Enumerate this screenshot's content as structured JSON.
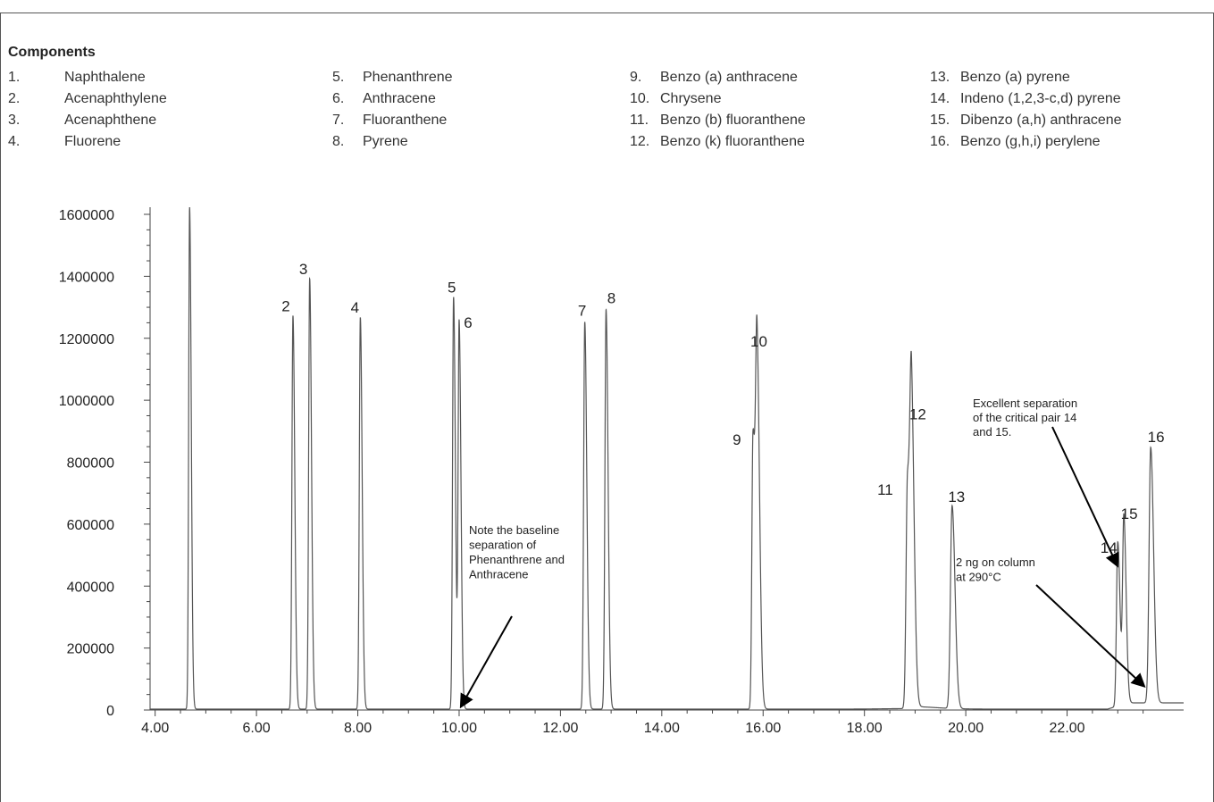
{
  "legend": {
    "title": "Components",
    "columns": [
      [
        {
          "num": "1.",
          "name": "Naphthalene"
        },
        {
          "num": "2.",
          "name": "Acenaphthylene"
        },
        {
          "num": "3.",
          "name": "Acenaphthene"
        },
        {
          "num": "4.",
          "name": "Fluorene"
        }
      ],
      [
        {
          "num": "5.",
          "name": "Phenanthrene"
        },
        {
          "num": "6.",
          "name": "Anthracene"
        },
        {
          "num": "7.",
          "name": "Fluoranthene"
        },
        {
          "num": "8.",
          "name": "Pyrene"
        }
      ],
      [
        {
          "num": "9.",
          "name": "Benzo (a) anthracene"
        },
        {
          "num": "10.",
          "name": "Chrysene"
        },
        {
          "num": "11.",
          "name": "Benzo (b) fluoranthene"
        },
        {
          "num": "12.",
          "name": "Benzo (k) fluoranthene"
        }
      ],
      [
        {
          "num": "13.",
          "name": "Benzo (a) pyrene"
        },
        {
          "num": "14.",
          "name": "Indeno (1,2,3-c,d) pyrene"
        },
        {
          "num": "15.",
          "name": "Dibenzo (a,h) anthracene"
        },
        {
          "num": "16.",
          "name": "Benzo (g,h,i) perylene"
        }
      ]
    ]
  },
  "chart_data": {
    "type": "line",
    "title": "",
    "xlabel": "",
    "ylabel": "",
    "xlim": [
      3.9,
      24.3
    ],
    "ylim": [
      0,
      1600000
    ],
    "grid": false,
    "x_ticks": [
      4,
      6,
      8,
      10,
      12,
      14,
      16,
      18,
      20,
      22
    ],
    "x_tick_labels": [
      "4.00",
      "6.00",
      "8.00",
      "10.00",
      "12.00",
      "14.00",
      "16.00",
      "18.00",
      "20.00",
      "22.00"
    ],
    "y_ticks": [
      0,
      200000,
      400000,
      600000,
      800000,
      1000000,
      1200000,
      1400000,
      1600000
    ],
    "y_tick_labels": [
      "0",
      "200000",
      "400000",
      "600000",
      "800000",
      "1000000",
      "1200000",
      "1400000",
      "1600000"
    ],
    "line_color": "#555555",
    "peaks": [
      {
        "label": "",
        "rt": 4.68,
        "height": 1620000,
        "width": 0.018
      },
      {
        "label": "2",
        "rt": 6.72,
        "height": 1270000,
        "width": 0.02
      },
      {
        "label": "3",
        "rt": 7.05,
        "height": 1390000,
        "width": 0.02
      },
      {
        "label": "4",
        "rt": 8.05,
        "height": 1265000,
        "width": 0.02
      },
      {
        "label": "5",
        "rt": 9.89,
        "height": 1330000,
        "width": 0.02
      },
      {
        "label": "6",
        "rt": 10.0,
        "height": 1245000,
        "width": 0.02
      },
      {
        "label": "7",
        "rt": 12.48,
        "height": 1250000,
        "width": 0.022
      },
      {
        "label": "8",
        "rt": 12.9,
        "height": 1290000,
        "width": 0.022
      },
      {
        "label": "9",
        "rt": 15.8,
        "height": 880000,
        "width": 0.022
      },
      {
        "label": "10",
        "rt": 15.88,
        "height": 1145000,
        "width": 0.028
      },
      {
        "label": "11",
        "rt": 18.85,
        "height": 735000,
        "width": 0.028
      },
      {
        "label": "12",
        "rt": 18.93,
        "height": 915000,
        "width": 0.03
      },
      {
        "label": "13",
        "rt": 19.73,
        "height": 655000,
        "width": 0.032
      },
      {
        "label": "14",
        "rt": 23.0,
        "height": 530000,
        "width": 0.025
      },
      {
        "label": "15",
        "rt": 23.12,
        "height": 600000,
        "width": 0.025
      },
      {
        "label": "16",
        "rt": 23.65,
        "height": 825000,
        "width": 0.032
      }
    ],
    "annotations": [
      {
        "lines": [
          "Note the baseline",
          "separation of",
          "Phenanthrene and",
          "Anthracene"
        ],
        "points_to": {
          "x": 10.05,
          "y": 15000
        }
      },
      {
        "lines": [
          "Excellent separation",
          "of the critical pair 14",
          "and 15."
        ],
        "points_to": {
          "x": 22.98,
          "y": 470000
        }
      },
      {
        "lines": [
          "2 ng on column",
          "at 290°C"
        ],
        "points_to": {
          "x": 23.5,
          "y": 80000
        }
      }
    ]
  }
}
